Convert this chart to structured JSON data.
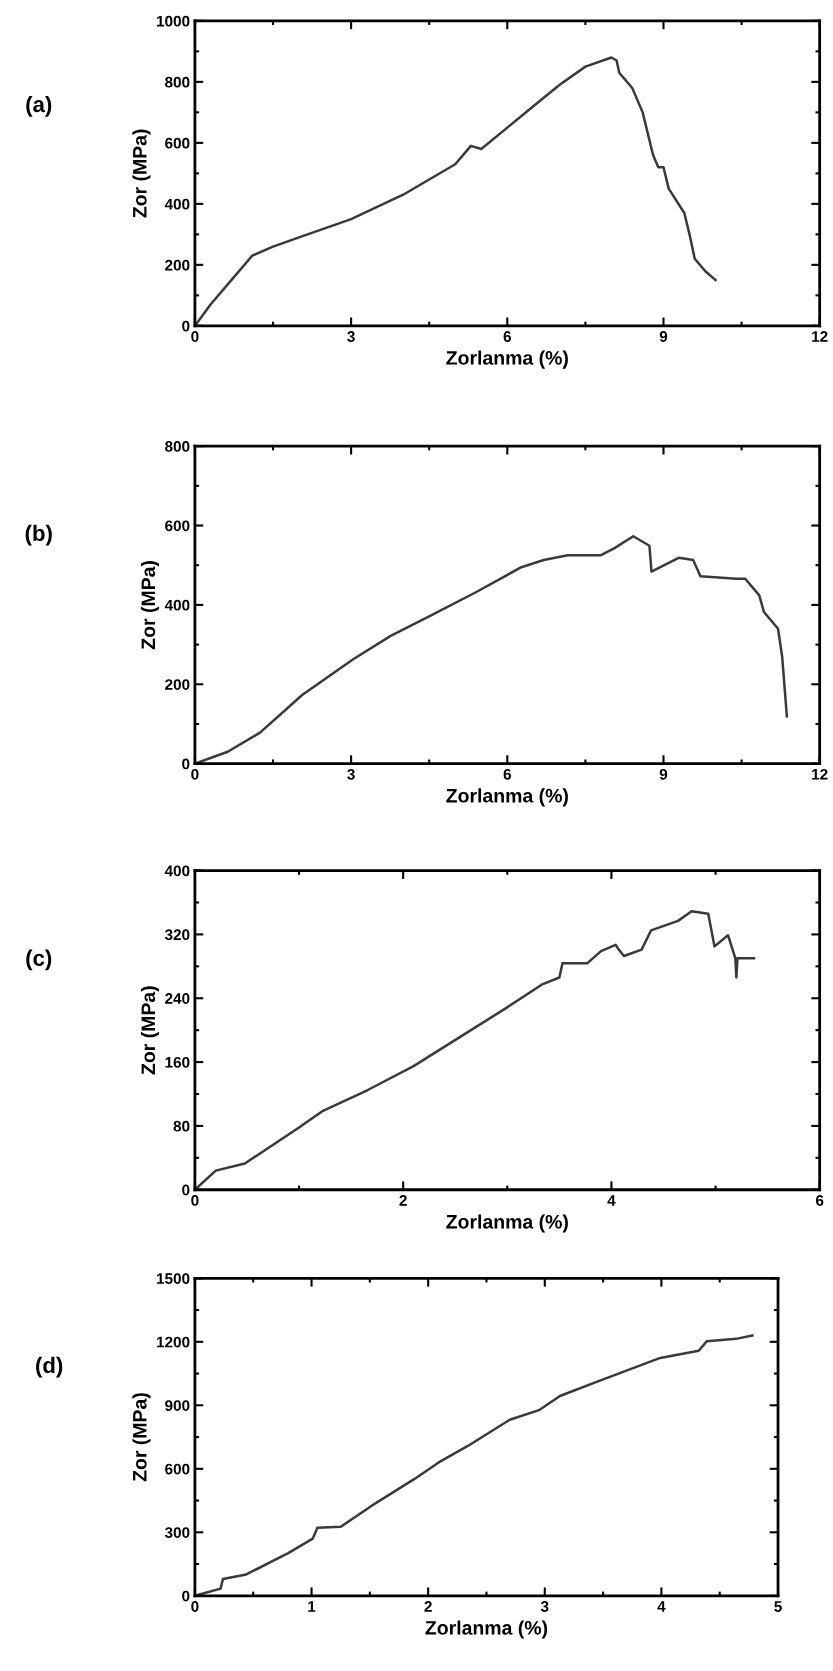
{
  "chart_data": [
    {
      "type": "line",
      "xlabel": "Zorlanma (%)",
      "ylabel": "Zor (MPa)",
      "annotations": [
        "(a)"
      ],
      "xlim": [
        0,
        12
      ],
      "ylim": [
        0,
        1000
      ],
      "xticks": [
        0,
        3,
        6,
        9,
        12
      ],
      "yticks": [
        0,
        200,
        400,
        600,
        800,
        1000
      ],
      "grid": false,
      "legend": false,
      "series": [
        {
          "color": "#3a3a3a",
          "x": [
            0,
            0.3,
            0.7,
            1.1,
            1.5,
            2,
            3,
            4,
            5,
            5.3,
            5.5,
            6,
            6.5,
            7,
            7.5,
            8,
            8.1,
            8.15,
            8.4,
            8.6,
            8.8,
            8.9,
            9.0,
            9.1,
            9.4,
            9.5,
            9.6,
            9.8,
            10.0
          ],
          "values": [
            0,
            70,
            150,
            230,
            260,
            290,
            350,
            430,
            530,
            590,
            580,
            650,
            720,
            790,
            850,
            880,
            870,
            830,
            780,
            700,
            560,
            520,
            520,
            450,
            370,
            300,
            220,
            180,
            150
          ]
        }
      ]
    },
    {
      "type": "line",
      "xlabel": "Zorlanma (%)",
      "ylabel": "Zor (MPa)",
      "annotations": [
        "(b)"
      ],
      "xlim": [
        0,
        12
      ],
      "ylim": [
        0,
        800
      ],
      "xticks": [
        0,
        3,
        6,
        9,
        12
      ],
      "yticks": [
        0,
        200,
        400,
        600,
        800
      ],
      "grid": false,
      "legend": false,
      "series": [
        {
          "color": "#3a3a3a",
          "x": [
            0,
            0.63,
            1.25,
            2.06,
            3.04,
            3.76,
            4.48,
            5.37,
            6.27,
            6.7,
            7.16,
            7.79,
            8.06,
            8.42,
            8.73,
            8.77,
            9.3,
            9.57,
            9.71,
            10.4,
            10.57,
            10.84,
            10.93,
            11.2,
            11.28,
            11.37
          ],
          "values": [
            0,
            30,
            78,
            173,
            263,
            322,
            370,
            430,
            495,
            513,
            525,
            525,
            543,
            573,
            549,
            484,
            519,
            513,
            472,
            466,
            466,
            424,
            382,
            340,
            269,
            119
          ]
        }
      ]
    },
    {
      "type": "line",
      "xlabel": "Zorlanma (%)",
      "ylabel": "Zor (MPa)",
      "annotations": [
        "(c)"
      ],
      "xlim": [
        0,
        6
      ],
      "ylim": [
        0,
        400
      ],
      "xticks": [
        0,
        2,
        4,
        6
      ],
      "yticks": [
        0,
        80,
        160,
        240,
        320,
        400
      ],
      "grid": false,
      "legend": false,
      "series": [
        {
          "color": "#3a3a3a",
          "x": [
            0,
            0.2,
            0.48,
            1.0,
            1.23,
            1.66,
            2.1,
            2.54,
            2.98,
            3.33,
            3.5,
            3.53,
            3.77,
            3.9,
            4.04,
            4.07,
            4.12,
            4.29,
            4.38,
            4.64,
            4.77,
            4.93,
            4.99,
            5.12,
            5.19,
            5.2,
            5.21,
            5.37
          ],
          "values": [
            0,
            24,
            33,
            78,
            99,
            125,
            155,
            191,
            227,
            257,
            266,
            284,
            284,
            299,
            307,
            301,
            293,
            301,
            325,
            337,
            349,
            346,
            305,
            319,
            290,
            266,
            290,
            290
          ]
        }
      ]
    },
    {
      "type": "line",
      "xlabel": "Zorlanma (%)",
      "ylabel": "Zor (MPa)",
      "annotations": [
        "(d)"
      ],
      "xlim": [
        0,
        5
      ],
      "ylim": [
        0,
        1500
      ],
      "xticks": [
        0,
        1,
        2,
        3,
        4,
        5
      ],
      "yticks": [
        0,
        300,
        600,
        900,
        1200,
        1500
      ],
      "grid": false,
      "legend": false,
      "series": [
        {
          "color": "#3a3a3a",
          "x": [
            0,
            0.22,
            0.24,
            0.44,
            0.8,
            1.01,
            1.05,
            1.25,
            1.52,
            1.88,
            2.09,
            2.34,
            2.7,
            2.95,
            3.13,
            3.45,
            3.99,
            4.32,
            4.39,
            4.64,
            4.78
          ],
          "values": [
            0,
            34,
            79,
            101,
            202,
            270,
            321,
            326,
            427,
            551,
            630,
            708,
            832,
            877,
            944,
            1012,
            1124,
            1158,
            1203,
            1214,
            1230
          ]
        }
      ]
    }
  ]
}
